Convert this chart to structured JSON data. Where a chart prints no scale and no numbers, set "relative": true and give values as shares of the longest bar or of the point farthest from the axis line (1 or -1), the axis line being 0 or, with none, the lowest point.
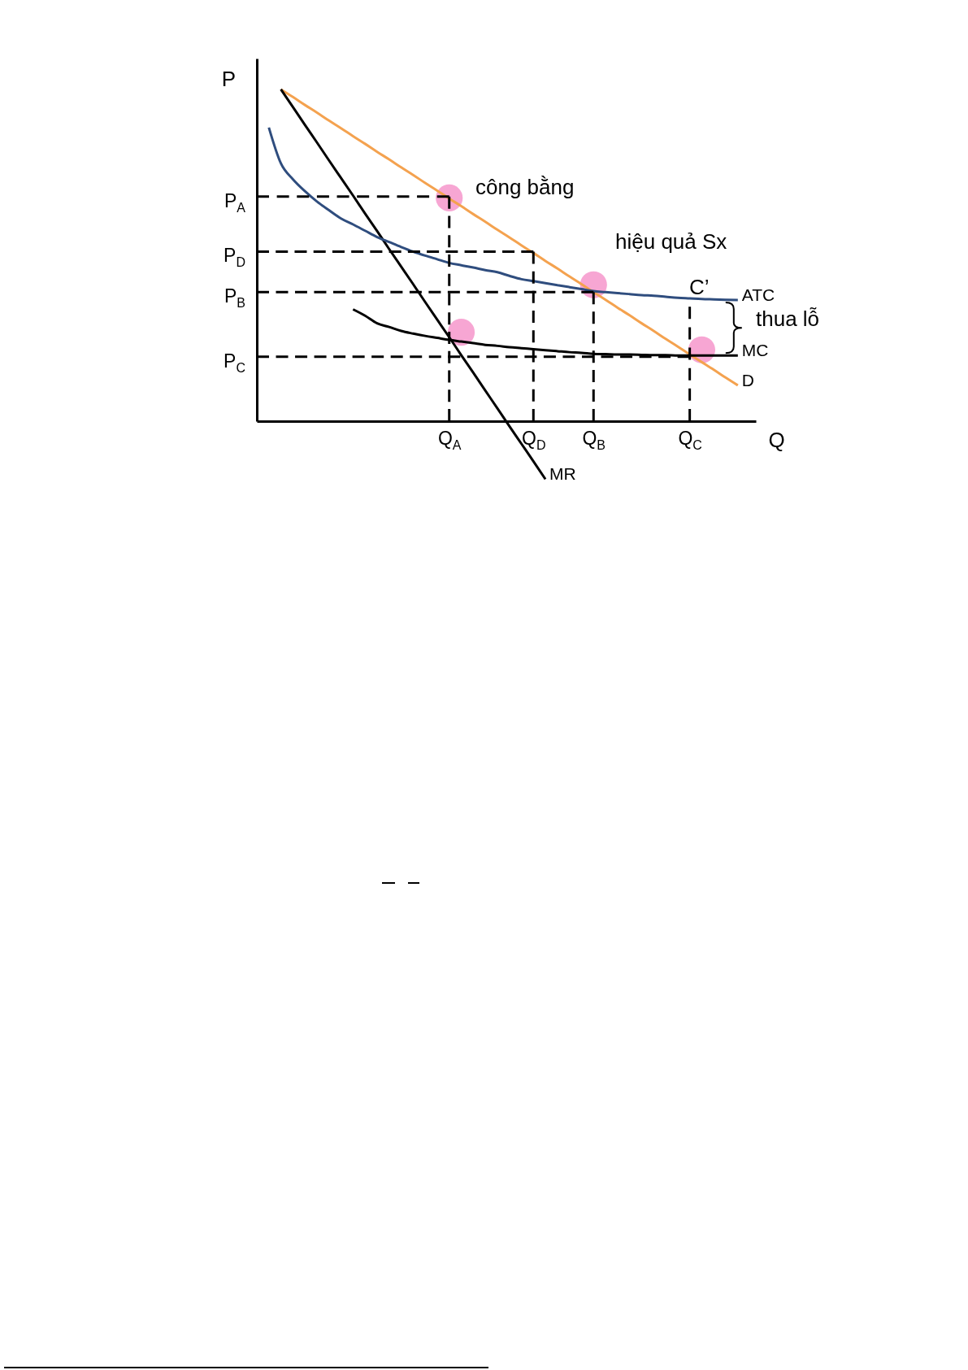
{
  "chart_data": {
    "type": "line",
    "relative": true,
    "xlabel": "Q",
    "ylabel": "P",
    "line_style": "solid",
    "categories": [
      null,
      null,
      null,
      null,
      null,
      null,
      null,
      null,
      null,
      null,
      null,
      null,
      null,
      null,
      null,
      null,
      "Q$_{A}$",
      null,
      null,
      null,
      null,
      null,
      null,
      "Q$_{D}$",
      null,
      null,
      null,
      null,
      "Q$_{B}$",
      null,
      null,
      null,
      null,
      null,
      null,
      null,
      "Q$_{C}$",
      null,
      null,
      null,
      null,
      null
    ],
    "series": [
      {
        "name": "D",
        "color": "#f4a24f",
        "values": [
          null,
          null,
          1.0,
          0.977,
          0.953,
          0.93,
          0.906,
          0.883,
          0.859,
          0.836,
          0.812,
          0.789,
          0.765,
          0.742,
          0.718,
          0.695,
          0.671,
          0.648,
          0.624,
          0.601,
          0.577,
          0.554,
          0.53,
          0.507,
          0.483,
          0.46,
          0.436,
          0.413,
          0.389,
          0.366,
          0.342,
          0.319,
          0.295,
          0.272,
          0.248,
          0.225,
          0.201,
          0.178,
          0.155,
          0.131,
          0.108,
          null
        ]
      },
      {
        "name": "MR",
        "color": "#000000",
        "values": [
          null,
          null,
          1.0,
          0.947,
          0.893,
          0.84,
          0.786,
          0.733,
          0.68,
          0.626,
          0.573,
          0.519,
          0.466,
          0.413,
          0.359,
          0.306,
          0.253,
          0.199,
          0.146,
          0.092,
          0.039,
          -0.015,
          -0.068,
          -0.121,
          -0.175,
          null,
          null,
          null,
          null,
          null,
          null,
          null,
          null,
          null,
          null,
          null,
          null,
          null,
          null,
          null,
          null,
          null
        ]
      },
      {
        "name": "ATC",
        "color": "#2f4d7e",
        "values": [
          null,
          0.885,
          0.777,
          0.729,
          0.693,
          0.662,
          0.636,
          0.611,
          0.593,
          0.574,
          0.555,
          0.54,
          0.525,
          0.511,
          0.499,
          0.488,
          0.477,
          0.47,
          0.463,
          0.455,
          0.449,
          0.438,
          0.428,
          0.422,
          0.416,
          0.41,
          0.404,
          0.398,
          0.392,
          0.389,
          0.386,
          0.383,
          0.38,
          0.378,
          0.375,
          0.372,
          0.37,
          0.368,
          0.367,
          0.366,
          0.365,
          null
        ]
      },
      {
        "name": "MC",
        "color": "#000000",
        "values": [
          null,
          null,
          null,
          null,
          null,
          null,
          null,
          null,
          0.337,
          0.318,
          0.295,
          0.284,
          0.272,
          0.264,
          0.257,
          0.251,
          0.245,
          0.24,
          0.235,
          0.23,
          0.227,
          0.223,
          0.22,
          0.217,
          0.214,
          0.211,
          0.208,
          0.206,
          0.203,
          0.202,
          0.201,
          0.201,
          0.2,
          0.199,
          0.199,
          0.198,
          0.198,
          0.198,
          0.198,
          0.198,
          0.198,
          null
        ]
      },
      {
        "name": "P$_{A}$",
        "color": "#000000",
        "line_style": "dashed",
        "values": [
          0.677,
          0.677,
          0.677,
          0.677,
          0.677,
          0.677,
          0.677,
          0.677,
          0.677,
          0.677,
          0.677,
          0.677,
          0.677,
          0.677,
          0.677,
          0.677,
          0.677,
          null,
          null,
          null,
          null,
          null,
          null,
          null,
          null,
          null,
          null,
          null,
          null,
          null,
          null,
          null,
          null,
          null,
          null,
          null,
          null,
          null,
          null,
          null,
          null,
          null
        ]
      },
      {
        "color": "#000000",
        "line_style": "dashed",
        "x": [
          "Q$_{A}$",
          "Q$_{A}$"
        ],
        "values": [
          0.677,
          0
        ]
      },
      {
        "name": "P$_{D}$",
        "color": "#000000",
        "line_style": "dashed",
        "values": [
          0.511,
          0.511,
          0.511,
          0.511,
          0.511,
          0.511,
          0.511,
          0.511,
          0.511,
          0.511,
          0.511,
          0.511,
          0.511,
          0.511,
          0.511,
          0.511,
          0.511,
          0.511,
          0.511,
          0.511,
          0.511,
          0.511,
          0.511,
          0.511,
          null,
          null,
          null,
          null,
          null,
          null,
          null,
          null,
          null,
          null,
          null,
          null,
          null,
          null,
          null,
          null,
          null,
          null
        ]
      },
      {
        "color": "#000000",
        "line_style": "dashed",
        "x": [
          "Q$_{D}$",
          "Q$_{D}$"
        ],
        "values": [
          0.511,
          0
        ]
      },
      {
        "name": "P$_{B}$",
        "color": "#000000",
        "line_style": "dashed",
        "values": [
          0.389,
          0.389,
          0.389,
          0.389,
          0.389,
          0.389,
          0.389,
          0.389,
          0.389,
          0.389,
          0.389,
          0.389,
          0.389,
          0.389,
          0.389,
          0.389,
          0.389,
          0.389,
          0.389,
          0.389,
          0.389,
          0.389,
          0.389,
          0.389,
          0.389,
          0.389,
          0.389,
          0.389,
          0.389,
          null,
          null,
          null,
          null,
          null,
          null,
          null,
          null,
          null,
          null,
          null,
          null,
          null
        ]
      },
      {
        "color": "#000000",
        "line_style": "dashed",
        "x": [
          "Q$_{B}$",
          "Q$_{B}$"
        ],
        "values": [
          0.389,
          0
        ]
      },
      {
        "name": "P$_{C}$",
        "color": "#000000",
        "line_style": "dashed",
        "values": [
          0.194,
          0.194,
          0.194,
          0.194,
          0.194,
          0.194,
          0.194,
          0.194,
          0.194,
          0.194,
          0.194,
          0.194,
          0.194,
          0.194,
          0.194,
          0.194,
          0.194,
          0.194,
          0.194,
          0.194,
          0.194,
          0.194,
          0.194,
          0.194,
          0.194,
          0.194,
          0.194,
          0.194,
          0.194,
          0.194,
          0.194,
          0.194,
          0.194,
          0.194,
          0.194,
          0.194,
          0.194,
          null,
          null,
          null,
          null,
          null
        ]
      },
      {
        "color": "#000000",
        "line_style": "dashed",
        "x": [
          "Q$_{C}$",
          "Q$_{C}$"
        ],
        "values": [
          0.345,
          0
        ]
      },
      {
        "type": "scatter",
        "color": "#f7a6d3",
        "marker": "circle",
        "values": [
          null,
          null,
          null,
          null,
          null,
          null,
          null,
          null,
          null,
          null,
          null,
          null,
          null,
          null,
          null,
          null,
          0.673,
          0.268,
          null,
          null,
          null,
          null,
          null,
          null,
          null,
          null,
          null,
          null,
          0.411,
          null,
          null,
          null,
          null,
          null,
          null,
          null,
          null,
          0.215,
          null,
          null,
          null,
          null
        ]
      }
    ],
    "annotations": [
      "công bằng",
      "hiệu quả Sx",
      "C’",
      "thua lỗ"
    ]
  }
}
